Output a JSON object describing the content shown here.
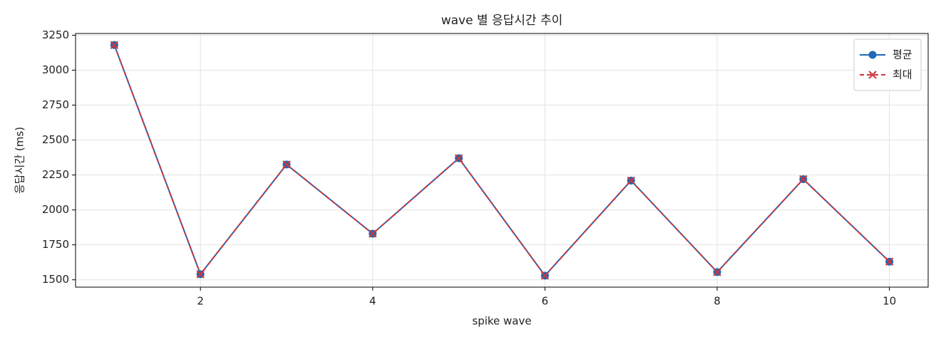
{
  "chart_data": {
    "type": "line",
    "title": "wave 별 응답시간 추이",
    "x_label": "spike wave",
    "y_label": "응답시간 (ms)",
    "x": [
      1,
      2,
      3,
      4,
      5,
      6,
      7,
      8,
      9,
      10
    ],
    "series": [
      {
        "name": "평균",
        "color": "#1f68b8",
        "marker": "o",
        "dash": false,
        "values": [
          3180,
          1540,
          2325,
          1830,
          2370,
          1530,
          2210,
          1555,
          2220,
          1630
        ]
      },
      {
        "name": "최대",
        "color": "#d13438",
        "marker": "x",
        "dash": true,
        "values": [
          3180,
          1540,
          2325,
          1830,
          2370,
          1530,
          2210,
          1555,
          2220,
          1630
        ]
      }
    ],
    "xlim": [
      0.55,
      10.45
    ],
    "ylim": [
      1447.5,
      3262.5
    ],
    "xticks": [
      2,
      4,
      6,
      8,
      10
    ],
    "yticks": [
      1500,
      1750,
      2000,
      2250,
      2500,
      2750,
      3000,
      3250
    ],
    "grid": true,
    "legend": "upper right"
  }
}
